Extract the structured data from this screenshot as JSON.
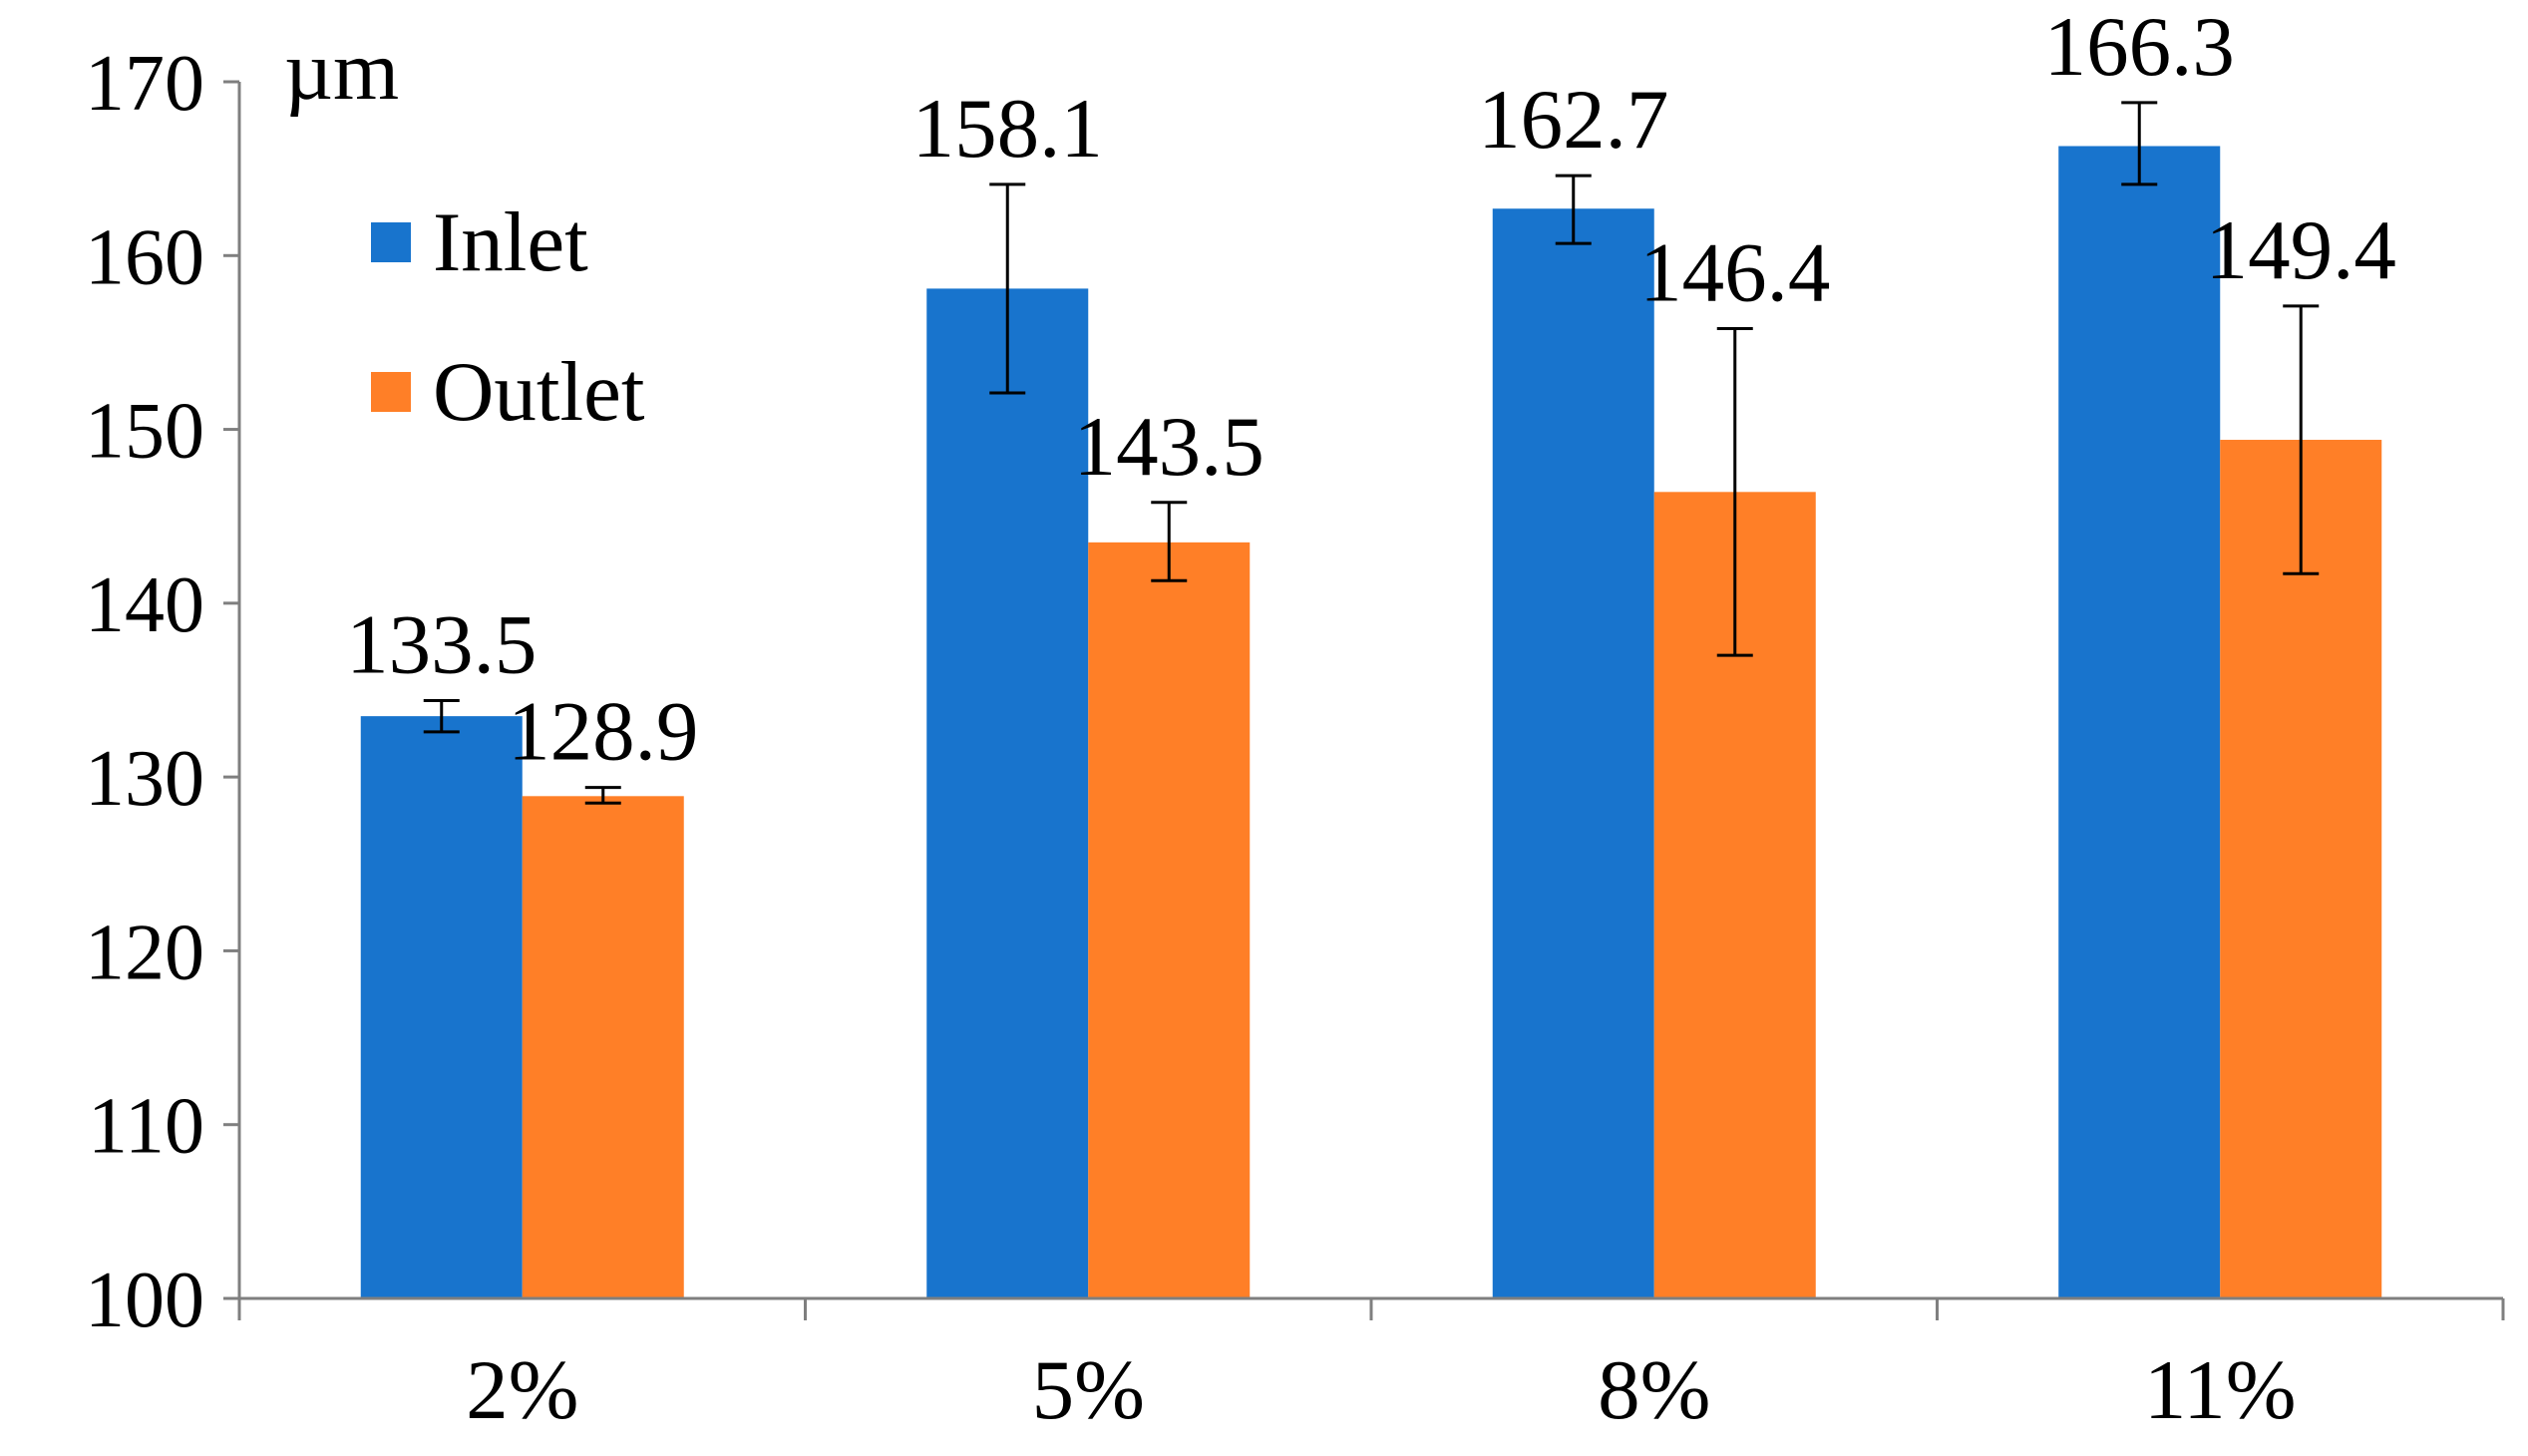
{
  "chart_data": {
    "type": "bar",
    "unit_label": "µm",
    "categories": [
      "2%",
      "5%",
      "8%",
      "11%"
    ],
    "series": [
      {
        "name": "Inlet",
        "color": "#1874CD",
        "values": [
          133.5,
          158.1,
          162.7,
          166.3
        ],
        "error_low": [
          132.6,
          152.1,
          160.7,
          164.1
        ],
        "error_high": [
          134.4,
          164.1,
          164.6,
          168.8
        ],
        "value_labels": [
          "133.5",
          "158.1",
          "162.7",
          "166.3"
        ]
      },
      {
        "name": "Outlet",
        "color": "#FF7F27",
        "values": [
          128.9,
          143.5,
          146.4,
          149.4
        ],
        "error_low": [
          128.5,
          141.3,
          137.0,
          141.7
        ],
        "error_high": [
          129.4,
          145.8,
          155.8,
          157.1
        ],
        "value_labels": [
          "128.9",
          "143.5",
          "146.4",
          "149.4"
        ]
      }
    ],
    "ylim": [
      100,
      170
    ],
    "yticks": [
      "100",
      "110",
      "120",
      "130",
      "140",
      "150",
      "160",
      "170"
    ],
    "grid": false,
    "legend_position": "top-left"
  }
}
